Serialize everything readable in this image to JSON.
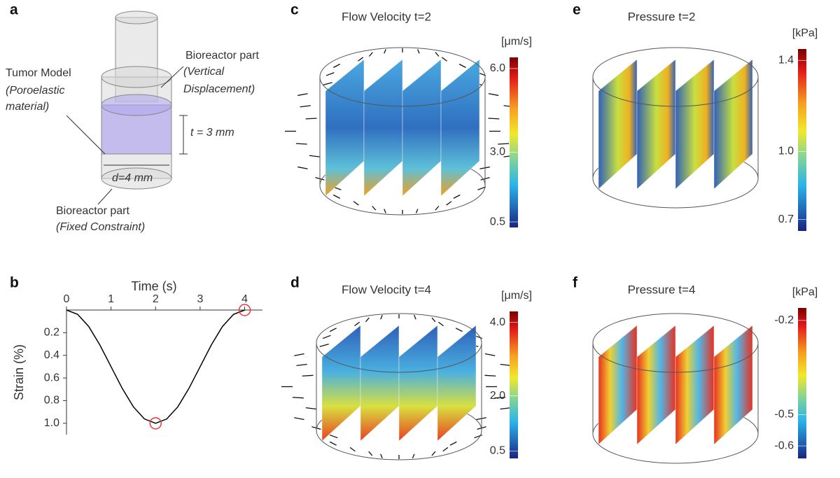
{
  "panel_a": {
    "letter": "a",
    "top_part": [
      "Bioreactor part",
      "(Vertical",
      "Displacement)"
    ],
    "tumor": [
      "Tumor Model",
      "(Poroelastic",
      "material)"
    ],
    "thickness": "t = 3 mm",
    "diameter": "d=4 mm",
    "bottom_part": [
      "Bioreactor part",
      "(Fixed Constraint)"
    ]
  },
  "panel_b": {
    "letter": "b",
    "chart_data": {
      "type": "line",
      "xlabel": "Time (s)",
      "ylabel": "Strain (%)",
      "x": [
        0,
        0.25,
        0.5,
        0.75,
        1,
        1.25,
        1.5,
        1.75,
        2,
        2.25,
        2.5,
        2.75,
        3,
        3.25,
        3.5,
        3.75,
        4
      ],
      "values": [
        0,
        0.038,
        0.146,
        0.309,
        0.5,
        0.691,
        0.854,
        0.962,
        1,
        0.962,
        0.854,
        0.691,
        0.5,
        0.309,
        0.146,
        0.038,
        0
      ],
      "color": "#000000",
      "highlight_x": [
        2,
        4
      ],
      "highlight_color": "#e53935",
      "xlim": [
        0,
        4.4
      ],
      "ylim": [
        0,
        1.1
      ],
      "y_inverted": true,
      "xticks": [
        0,
        1,
        2,
        3,
        4
      ],
      "yticks": [
        0.2,
        0.4,
        0.6,
        0.8,
        {
          "value": 1,
          "label": "1.0"
        }
      ]
    }
  },
  "panel_c": {
    "letter": "c",
    "title": "Flow Velocity t=2",
    "colorbar": {
      "unit": "[μm/s]",
      "range": [
        0.3,
        6.4
      ],
      "ticks": [
        {
          "value": 6,
          "label": "6.0"
        },
        {
          "value": 3,
          "label": "3.0"
        },
        0.5
      ]
    }
  },
  "panel_d": {
    "letter": "d",
    "title": "Flow Velocity t=4",
    "colorbar": {
      "unit": "[μm/s]",
      "range": [
        0.3,
        4.3
      ],
      "ticks": [
        {
          "value": 4,
          "label": "4.0"
        },
        {
          "value": 2,
          "label": "2.0"
        },
        0.5
      ]
    }
  },
  "panel_e": {
    "letter": "e",
    "title": "Pressure t=2",
    "colorbar": {
      "unit": "[kPa]",
      "range": [
        0.65,
        1.45
      ],
      "ticks": [
        1.4,
        {
          "value": 1,
          "label": "1.0"
        },
        0.7
      ]
    }
  },
  "panel_f": {
    "letter": "f",
    "title": "Pressure t=4",
    "colorbar": {
      "unit": "[kPa]",
      "range": [
        -0.64,
        -0.16
      ],
      "ticks": [
        -0.2,
        -0.5,
        -0.6
      ]
    }
  }
}
